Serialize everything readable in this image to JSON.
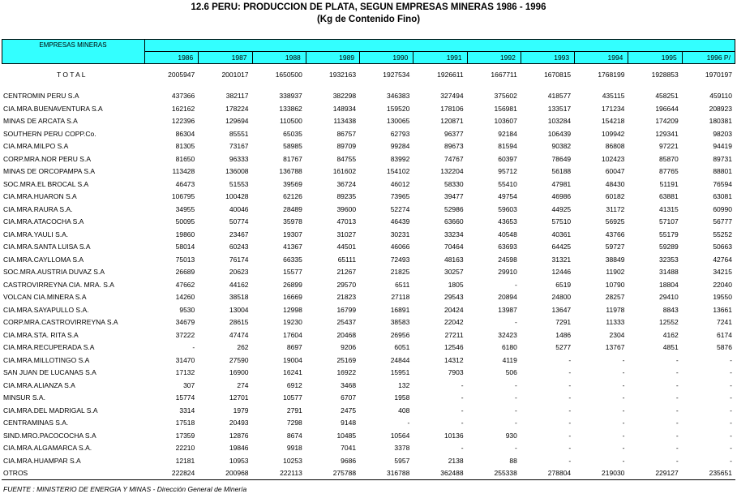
{
  "header": {
    "title": "12.6 PERU: PRODUCCION DE PLATA, SEGUN EMPRESAS MINERAS 1986 - 1996",
    "subtitle": "(Kg de Contenido Fino)"
  },
  "table": {
    "columns": [
      "EMPRESAS MINERAS",
      1986,
      1987,
      1988,
      1989,
      1990,
      1991,
      1992,
      1993,
      1994,
      1995,
      "1996  P/"
    ],
    "total": [
      "T O T A L",
      2005947,
      2001017,
      1650500,
      1932163,
      1927534,
      1926611,
      1667711,
      1670815,
      1768199,
      1928853,
      1970197
    ],
    "rows": [
      [
        "CENTROMIN PERU S.A",
        437366,
        382117,
        338937,
        382298,
        346383,
        327494,
        375602,
        418577,
        435115,
        458251,
        459110
      ],
      [
        "CIA.MRA.BUENAVENTURA  S.A",
        162162,
        178224,
        133862,
        148934,
        159520,
        178106,
        156981,
        133517,
        171234,
        196644,
        208923
      ],
      [
        "MINAS DE ARCATA S.A",
        122396,
        129694,
        110500,
        113438,
        130065,
        120871,
        103607,
        103284,
        154218,
        174209,
        180381
      ],
      [
        "SOUTHERN PERU COPP.Co.",
        86304,
        85551,
        65035,
        86757,
        62793,
        96377,
        92184,
        106439,
        109942,
        129341,
        98203
      ],
      [
        "CIA.MRA.MILPO  S.A",
        81305,
        73167,
        58985,
        89709,
        99284,
        89673,
        81594,
        90382,
        86808,
        97221,
        94419
      ],
      [
        "CORP.MRA.NOR PERU  S.A",
        81650,
        96333,
        81767,
        84755,
        83992,
        74767,
        60397,
        78649,
        102423,
        85870,
        89731
      ],
      [
        "MINAS DE ORCOPAMPA S.A",
        113428,
        136008,
        136788,
        161602,
        154102,
        132204,
        95712,
        56188,
        60047,
        87765,
        88801
      ],
      [
        "SOC.MRA.EL BROCAL  S.A",
        46473,
        51553,
        39569,
        36724,
        46012,
        58330,
        55410,
        47981,
        48430,
        51191,
        76594
      ],
      [
        "CIA.MRA.HUARON  S.A",
        106795,
        100428,
        62126,
        89235,
        73965,
        39477,
        49754,
        46986,
        60182,
        63881,
        63081
      ],
      [
        "CIA.MRA.RAURA S.A.",
        34955,
        40046,
        28489,
        39600,
        52274,
        52986,
        59603,
        44925,
        31172,
        41315,
        60990
      ],
      [
        "CIA.MRA.ATACOCHA  S.A",
        50095,
        50774,
        35978,
        47013,
        46439,
        63660,
        43653,
        57510,
        56925,
        57107,
        56777
      ],
      [
        "CIA.MRA.YAULI S.A.",
        19860,
        23467,
        19307,
        31027,
        30231,
        33234,
        40548,
        40361,
        43766,
        55179,
        55252
      ],
      [
        "CIA.MRA.SANTA LUISA  S.A",
        58014,
        60243,
        41367,
        44501,
        46066,
        70464,
        63693,
        64425,
        59727,
        59289,
        50663
      ],
      [
        "CIA.MRA.CAYLLOMA  S.A",
        75013,
        76174,
        66335,
        65111,
        72493,
        48163,
        24598,
        31321,
        38849,
        32353,
        42764
      ],
      [
        "SOC.MRA.AUSTRIA DUVAZ  S.A",
        26689,
        20623,
        15577,
        21267,
        21825,
        30257,
        29910,
        12446,
        11902,
        31488,
        34215
      ],
      [
        "CASTROVIRREYNA  CIA. MRA. S.A",
        47662,
        44162,
        26899,
        29570,
        6511,
        1805,
        "-",
        6519,
        10790,
        18804,
        22040
      ],
      [
        "VOLCAN CIA.MINERA  S.A",
        14260,
        38518,
        16669,
        21823,
        27118,
        29543,
        20894,
        24800,
        28257,
        29410,
        19550
      ],
      [
        "CIA.MRA.SAYAPULLO S.A.",
        9530,
        13004,
        12998,
        16799,
        16891,
        20424,
        13987,
        13647,
        11978,
        8843,
        13661
      ],
      [
        "CORP.MRA.CASTROVIRREYNA  S.A",
        34679,
        28615,
        19230,
        25437,
        38583,
        22042,
        "-",
        7291,
        11333,
        12552,
        7241
      ],
      [
        "CIA.MRA.STA. RITA  S.A",
        37222,
        47474,
        17604,
        20468,
        26956,
        27211,
        32423,
        1486,
        2304,
        4162,
        6174
      ],
      [
        "CIA.MRA.RECUPERADA S.A",
        "-",
        262,
        8697,
        9206,
        6051,
        12546,
        6180,
        5277,
        13767,
        4851,
        5876
      ],
      [
        "CIA.MRA.MILLOTINGO  S.A",
        31470,
        27590,
        19004,
        25169,
        24844,
        14312,
        4119,
        "-",
        "-",
        "-",
        "-"
      ],
      [
        "SAN JUAN DE LUCANAS S.A",
        17132,
        16900,
        16241,
        16922,
        15951,
        7903,
        506,
        "-",
        "-",
        "-",
        "-"
      ],
      [
        "CIA.MRA.ALIANZA  S.A",
        307,
        274,
        6912,
        3468,
        132,
        "-",
        "-",
        "-",
        "-",
        "-",
        "-"
      ],
      [
        "MINSUR S.A.",
        15774,
        12701,
        10577,
        6707,
        1958,
        "-",
        "-",
        "-",
        "-",
        "-",
        "-"
      ],
      [
        "CIA.MRA.DEL MADRIGAL  S.A",
        3314,
        1979,
        2791,
        2475,
        408,
        "-",
        "-",
        "-",
        "-",
        "-",
        "-"
      ],
      [
        "CENTRAMINAS S.A.",
        17518,
        20493,
        7298,
        9148,
        "-",
        "-",
        "-",
        "-",
        "-",
        "-",
        "-"
      ],
      [
        "SIND.MRO.PACOCOCHA  S.A",
        17359,
        12876,
        8674,
        10485,
        10564,
        10136,
        930,
        "-",
        "-",
        "-",
        "-"
      ],
      [
        "CIA.MRA.ALGAMARCA S.A.",
        22210,
        19846,
        9918,
        7041,
        3378,
        "-",
        "-",
        "-",
        "-",
        "-",
        "-"
      ],
      [
        "CIA.MRA.HUAMPAR  S.A",
        12181,
        10953,
        10253,
        9686,
        5957,
        2138,
        88,
        "-",
        "-",
        "-",
        "-"
      ],
      [
        "OTROS",
        222824,
        200968,
        222113,
        275788,
        316788,
        362488,
        255338,
        278804,
        219030,
        229127,
        235651
      ]
    ]
  },
  "footer": "FUENTE : MINISTERIO DE ENERGIA Y MINAS  - Dirección General de Minería"
}
